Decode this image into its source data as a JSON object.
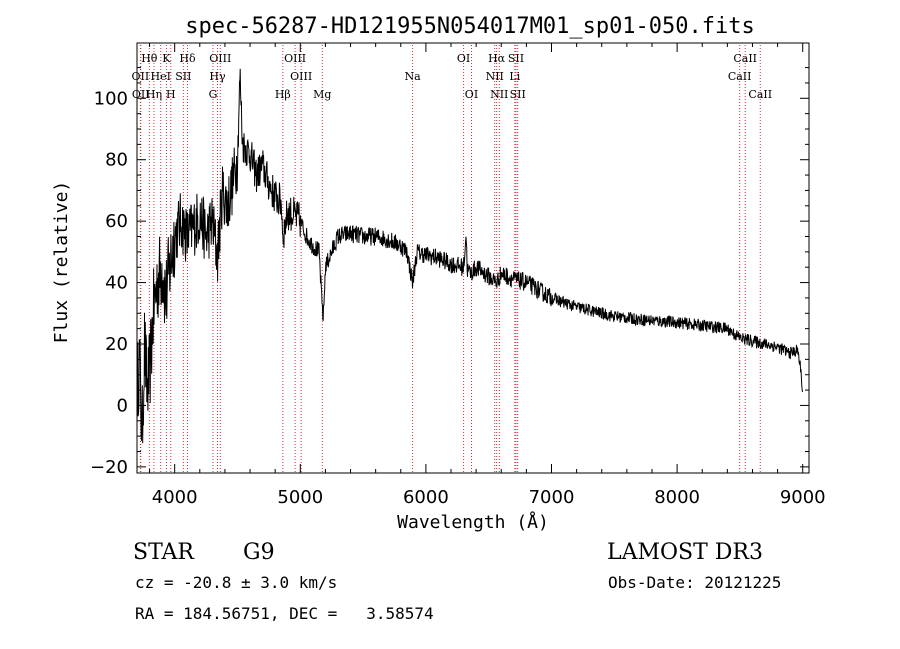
{
  "colors": {
    "foreground": "#000000",
    "line_marker": "#cc3333",
    "background": "#ffffff"
  },
  "chart_data": {
    "type": "line",
    "title": "spec-56287-HD121955N054017M01_sp01-050.fits",
    "xlabel": "Wavelength (Å)",
    "ylabel": "Flux (relative)",
    "xlim": [
      3700,
      9050
    ],
    "ylim": [
      -22,
      118
    ],
    "x_ticks": [
      4000,
      5000,
      6000,
      7000,
      8000,
      9000
    ],
    "y_ticks": [
      -20,
      0,
      20,
      40,
      60,
      80,
      100
    ],
    "grid": false,
    "series": [
      {
        "name": "flux",
        "x": [
          3700,
          3720,
          3740,
          3760,
          3780,
          3800,
          3830,
          3860,
          3900,
          3930,
          3960,
          4000,
          4050,
          4100,
          4150,
          4200,
          4250,
          4300,
          4340,
          4380,
          4420,
          4460,
          4500,
          4520,
          4540,
          4560,
          4600,
          4650,
          4700,
          4750,
          4800,
          4850,
          4861,
          4900,
          4950,
          5000,
          5050,
          5100,
          5150,
          5170,
          5183,
          5200,
          5250,
          5300,
          5400,
          5500,
          5600,
          5700,
          5800,
          5850,
          5893,
          5930,
          6000,
          6100,
          6200,
          6300,
          6320,
          6330,
          6360,
          6400,
          6500,
          6563,
          6600,
          6700,
          6800,
          7000,
          7200,
          7500,
          7700,
          8000,
          8200,
          8400,
          8500,
          8600,
          8700,
          8800,
          8900,
          8960,
          8990,
          9000
        ],
        "y": [
          5,
          15,
          -10,
          20,
          5,
          10,
          30,
          40,
          45,
          35,
          45,
          55,
          60,
          55,
          58,
          62,
          55,
          60,
          48,
          70,
          65,
          72,
          80,
          108,
          85,
          84,
          82,
          75,
          78,
          72,
          68,
          66,
          55,
          63,
          62,
          60,
          55,
          52,
          50,
          35,
          28,
          45,
          50,
          55,
          56,
          55,
          55,
          54,
          52,
          50,
          40,
          50,
          49,
          48,
          46,
          45,
          56,
          44,
          43,
          45,
          42,
          40,
          43,
          41,
          40,
          35,
          32,
          29,
          28,
          27,
          26,
          25,
          22,
          21,
          20,
          19,
          17,
          18,
          10,
          2
        ],
        "noise": 3
      }
    ],
    "line_markers": [
      {
        "label": "Hθ",
        "x": 3798,
        "row": 0
      },
      {
        "label": "OII",
        "x": 3727,
        "row": 1
      },
      {
        "label": "OII",
        "x": 3730,
        "row": 2
      },
      {
        "label": "K",
        "x": 3934,
        "row": 0
      },
      {
        "label": "HeI",
        "x": 3889,
        "row": 1
      },
      {
        "label": "Hη",
        "x": 3835,
        "row": 2
      },
      {
        "label": "SII",
        "x": 4069,
        "row": 1
      },
      {
        "label": "H",
        "x": 3969,
        "row": 2
      },
      {
        "label": "Hδ",
        "x": 4102,
        "row": 0
      },
      {
        "label": "OIII",
        "x": 4363,
        "row": 0
      },
      {
        "label": "Hγ",
        "x": 4341,
        "row": 1
      },
      {
        "label": "G",
        "x": 4305,
        "row": 2
      },
      {
        "label": "Hβ",
        "x": 4861,
        "row": 2
      },
      {
        "label": "OIII",
        "x": 4959,
        "row": 0
      },
      {
        "label": "OIII",
        "x": 5007,
        "row": 1
      },
      {
        "label": "Mg",
        "x": 5175,
        "row": 2
      },
      {
        "label": "Na",
        "x": 5894,
        "row": 1
      },
      {
        "label": "OI",
        "x": 6300,
        "row": 0
      },
      {
        "label": "OI",
        "x": 6363,
        "row": 2
      },
      {
        "label": "Hα",
        "x": 6563,
        "row": 0
      },
      {
        "label": "NII",
        "x": 6548,
        "row": 1
      },
      {
        "label": "NII",
        "x": 6584,
        "row": 2
      },
      {
        "label": "SII",
        "x": 6717,
        "row": 0
      },
      {
        "label": "Li",
        "x": 6708,
        "row": 1
      },
      {
        "label": "SII",
        "x": 6731,
        "row": 2
      },
      {
        "label": "CaII",
        "x": 8542,
        "row": 0
      },
      {
        "label": "CaII",
        "x": 8498,
        "row": 1
      },
      {
        "label": "CaII",
        "x": 8662,
        "row": 2
      }
    ]
  },
  "footer": {
    "object_type": "STAR",
    "subclass": "G9",
    "survey": "LAMOST DR3",
    "redshift_text": "cz = -20.8 ± 3.0 km/s",
    "obs_date_text": "Obs-Date: 20121225",
    "coords_text": "RA = 184.56751, DEC =   3.58574"
  }
}
